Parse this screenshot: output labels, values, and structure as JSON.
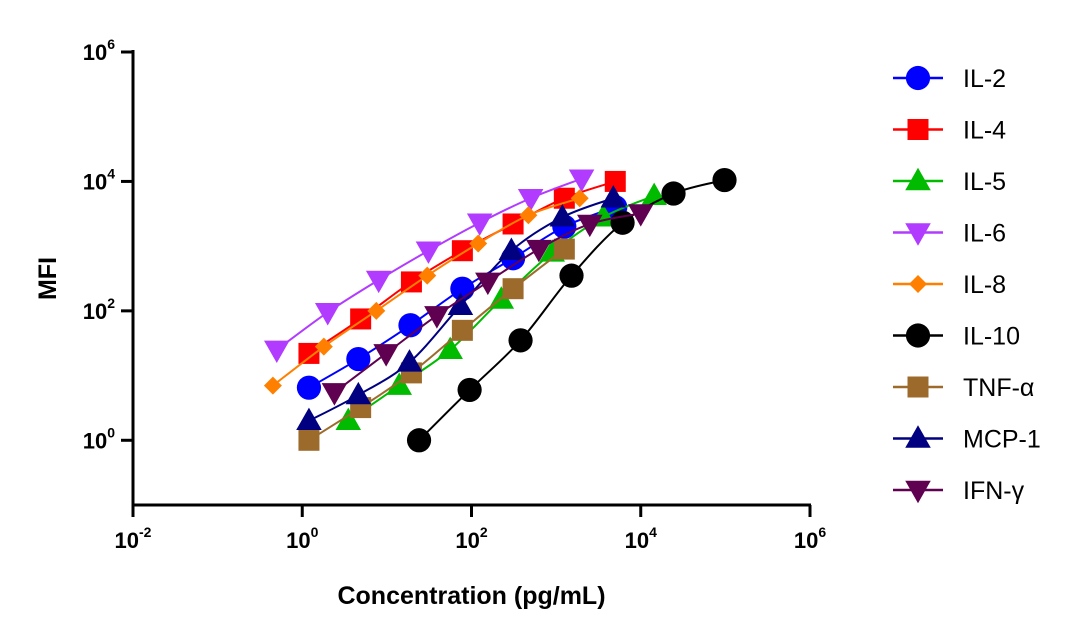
{
  "chart_data": {
    "type": "scatter",
    "title": "",
    "xlabel": "Concentration (pg/mL)",
    "ylabel": "MFI",
    "x_scale": "log",
    "y_scale": "log",
    "xlim": [
      0.01,
      1000000
    ],
    "ylim": [
      0.1,
      1000000
    ],
    "x_ticks": [
      {
        "value": 0.01,
        "base": "10",
        "exp": "-2"
      },
      {
        "value": 1,
        "base": "10",
        "exp": "0"
      },
      {
        "value": 100,
        "base": "10",
        "exp": "2"
      },
      {
        "value": 10000,
        "base": "10",
        "exp": "4"
      },
      {
        "value": 1000000,
        "base": "10",
        "exp": "6"
      }
    ],
    "y_ticks": [
      {
        "value": 1,
        "base": "10",
        "exp": "0"
      },
      {
        "value": 100,
        "base": "10",
        "exp": "2"
      },
      {
        "value": 10000,
        "base": "10",
        "exp": "4"
      },
      {
        "value": 1000000,
        "base": "10",
        "exp": "6"
      }
    ],
    "grid": false,
    "legend": "right",
    "series": [
      {
        "name": "IL-2",
        "color": "#0000ff",
        "marker": "circle",
        "x": [
          1.2,
          4.6,
          19,
          78,
          310,
          1250,
          5000
        ],
        "y": [
          6.5,
          18,
          60,
          220,
          650,
          2000,
          4000
        ]
      },
      {
        "name": "IL-4",
        "color": "#ff0000",
        "marker": "square",
        "x": [
          1.2,
          4.9,
          19.5,
          78,
          310,
          1250,
          5000
        ],
        "y": [
          22,
          75,
          280,
          850,
          2200,
          5500,
          10000
        ]
      },
      {
        "name": "IL-5",
        "color": "#00bb00",
        "marker": "triangle-up",
        "x": [
          3.5,
          14,
          56,
          225,
          900,
          3600,
          14400
        ],
        "y": [
          2,
          7,
          25,
          150,
          800,
          2800,
          6000
        ]
      },
      {
        "name": "IL-6",
        "color": "#b13bff",
        "marker": "triangle-down",
        "x": [
          0.5,
          2,
          8,
          31,
          125,
          500,
          2000
        ],
        "y": [
          25,
          95,
          300,
          850,
          2300,
          5500,
          11000
        ]
      },
      {
        "name": "IL-8",
        "color": "#ff8000",
        "marker": "diamond",
        "x": [
          0.45,
          1.8,
          7.5,
          30,
          120,
          470,
          1900
        ],
        "y": [
          7,
          28,
          100,
          350,
          1100,
          3000,
          5500
        ]
      },
      {
        "name": "IL-10",
        "color": "#000000",
        "marker": "circle",
        "x": [
          24,
          95,
          380,
          1520,
          6100,
          24400,
          97700
        ],
        "y": [
          1,
          6,
          35,
          350,
          2300,
          6500,
          10500
        ]
      },
      {
        "name": "TNF-α",
        "color": "#9c6b2b",
        "marker": "square",
        "x": [
          1.2,
          4.9,
          19.5,
          78,
          310,
          1250
        ],
        "y": [
          1,
          3.2,
          11,
          50,
          220,
          900
        ]
      },
      {
        "name": "MCP-1",
        "color": "#000080",
        "marker": "triangle-up",
        "x": [
          1.2,
          4.6,
          18.5,
          74,
          296,
          1185,
          4740
        ],
        "y": [
          2,
          5,
          16,
          120,
          850,
          2800,
          5500
        ]
      },
      {
        "name": "IFN-γ",
        "color": "#600050",
        "marker": "triangle-down",
        "x": [
          2.4,
          9.8,
          39,
          156,
          625,
          2500,
          10000
        ],
        "y": [
          5.5,
          22,
          85,
          280,
          900,
          2200,
          3200
        ]
      }
    ]
  }
}
